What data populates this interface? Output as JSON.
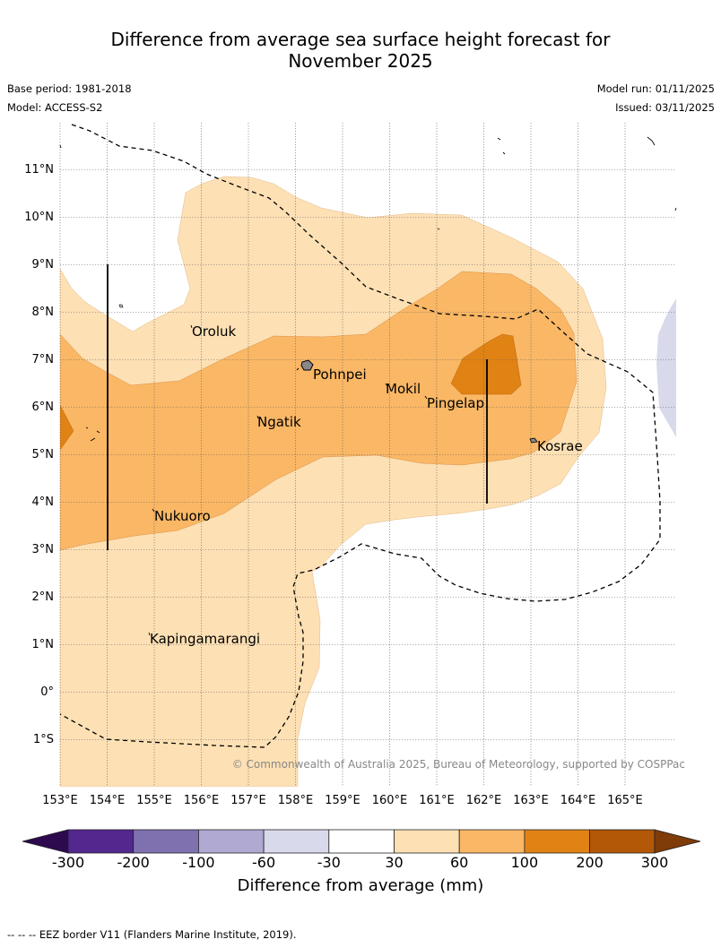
{
  "title_line1": "Difference from average sea surface height forecast for",
  "title_line2": "November 2025",
  "base_period": "Base period: 1981-2018",
  "model": "Model: ACCESS-S2",
  "model_run": "Model run: 01/11/2025",
  "issued": "Issued: 03/11/2025",
  "copyright": "© Commonwealth of Australia 2025, Bureau of Meteorology, supported by COSPPac",
  "lat_labels": [
    "11°N",
    "10°N",
    "9°N",
    "8°N",
    "7°N",
    "6°N",
    "5°N",
    "4°N",
    "3°N",
    "2°N",
    "1°N",
    "0°",
    "1°S"
  ],
  "lon_labels": [
    "153°E",
    "154°E",
    "155°E",
    "156°E",
    "157°E",
    "158°E",
    "159°E",
    "160°E",
    "161°E",
    "162°E",
    "163°E",
    "164°E",
    "165°E"
  ],
  "places": {
    "oroluk": "Oroluk",
    "pohnpei": "Pohnpei",
    "mokil": "Mokil",
    "pingelap": "Pingelap",
    "ngatik": "Ngatik",
    "kosrae": "Kosrae",
    "nukuoro": "Nukuoro",
    "kapingamarangi": "Kapingamarangi"
  },
  "colorbar": {
    "title": "Difference from average (mm)",
    "ticks": [
      "-300",
      "-200",
      "-100",
      "-60",
      "-30",
      "30",
      "60",
      "100",
      "200",
      "300"
    ],
    "colors": {
      "under": "#2d0a4e",
      "c1": "#54278f",
      "c2": "#7f71b0",
      "c3": "#b0a9d2",
      "c4": "#d9d9ec",
      "c5": "#ffffff",
      "c6": "#fde0b4",
      "c7": "#fab765",
      "c8": "#e08214",
      "c9": "#b35806",
      "over": "#7f3b08"
    }
  },
  "footer": "--  --  -- EEZ border V11 (Flanders Marine Institute, 2019)."
}
